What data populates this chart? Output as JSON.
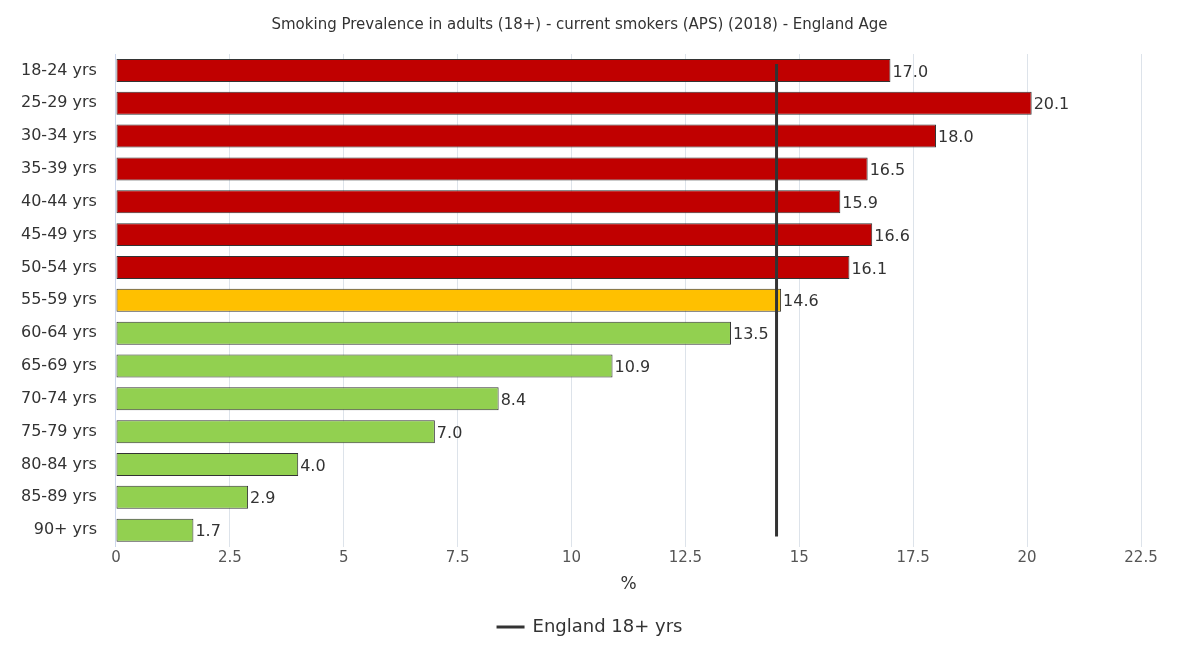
{
  "chart_data": {
    "type": "bar",
    "orientation": "horizontal",
    "title": "Smoking Prevalence in adults (18+) - current smokers (APS) (2018) - England Age",
    "xlabel": "%",
    "categories": [
      "18-24 yrs",
      "25-29 yrs",
      "30-34 yrs",
      "35-39 yrs",
      "40-44 yrs",
      "45-49 yrs",
      "50-54 yrs",
      "55-59 yrs",
      "60-64 yrs",
      "65-69 yrs",
      "70-74 yrs",
      "75-79 yrs",
      "80-84 yrs",
      "85-89 yrs",
      "90+ yrs"
    ],
    "values": [
      17.0,
      20.1,
      18.0,
      16.5,
      15.9,
      16.6,
      16.1,
      14.6,
      13.5,
      10.9,
      8.4,
      7.0,
      4.0,
      2.9,
      1.7
    ],
    "colors": [
      "#c00000",
      "#c00000",
      "#c00000",
      "#c00000",
      "#c00000",
      "#c00000",
      "#c00000",
      "#ffc000",
      "#92d050",
      "#92d050",
      "#92d050",
      "#92d050",
      "#92d050",
      "#92d050",
      "#92d050"
    ],
    "value_labels": [
      "17.0",
      "20.1",
      "18.0",
      "16.5",
      "15.9",
      "16.6",
      "16.1",
      "14.6",
      "13.5",
      "10.9",
      "8.4",
      "7.0",
      "4.0",
      "2.9",
      "1.7"
    ],
    "xlim": [
      0,
      22.5
    ],
    "xticks": [
      0,
      2.5,
      5,
      7.5,
      10,
      12.5,
      15,
      17.5,
      20,
      22.5
    ],
    "grid": "x",
    "legend": "bottom",
    "ref_lines": [
      {
        "axis": "x",
        "value": 14.5,
        "label": "England 18+ yrs",
        "color": "#333333"
      }
    ]
  }
}
